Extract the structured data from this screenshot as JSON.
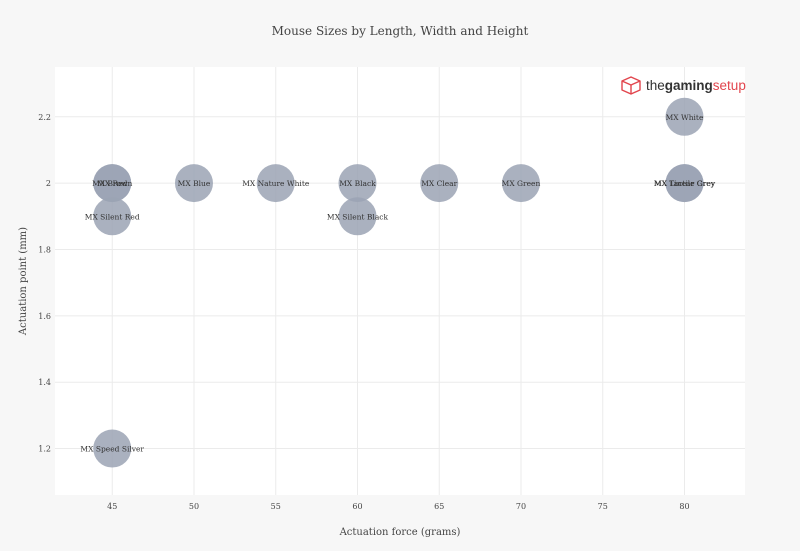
{
  "chart_data": {
    "type": "scatter",
    "title": "Mouse Sizes by Length, Width and Height",
    "xlabel": "Actuation force (grams)",
    "ylabel": "Actuation point (mm)",
    "xlim": [
      41.5,
      83.7
    ],
    "ylim": [
      1.06,
      2.35
    ],
    "x_ticks": [
      45,
      50,
      55,
      60,
      65,
      70,
      75,
      80
    ],
    "y_ticks": [
      1.2,
      1.4,
      1.6,
      1.8,
      2.0,
      2.2
    ],
    "y_tick_labels": [
      "1.2",
      "1.4",
      "1.6",
      "1.8",
      "2",
      "2.2"
    ],
    "grid": true,
    "bubble_color": "#9ba3b4",
    "points": [
      {
        "x": 45,
        "y": 2.0,
        "label": "MX Red"
      },
      {
        "x": 45,
        "y": 2.0,
        "label": "MX Brown"
      },
      {
        "x": 45,
        "y": 1.9,
        "label": "MX Silent Red"
      },
      {
        "x": 45,
        "y": 1.2,
        "label": "MX Speed Silver"
      },
      {
        "x": 50,
        "y": 2.0,
        "label": "MX Blue"
      },
      {
        "x": 55,
        "y": 2.0,
        "label": "MX Nature White"
      },
      {
        "x": 60,
        "y": 2.0,
        "label": "MX Black"
      },
      {
        "x": 60,
        "y": 1.9,
        "label": "MX Silent Black"
      },
      {
        "x": 65,
        "y": 2.0,
        "label": "MX Clear"
      },
      {
        "x": 70,
        "y": 2.0,
        "label": "MX Green"
      },
      {
        "x": 80,
        "y": 2.2,
        "label": "MX White"
      },
      {
        "x": 80,
        "y": 2.0,
        "label": "MX Tactile Grey"
      },
      {
        "x": 80,
        "y": 2.0,
        "label": "MX Linear Grey"
      }
    ]
  },
  "logo": {
    "the": "the",
    "gaming": "gaming",
    "setup": "setup",
    "icon_name": "cube-logo-icon",
    "accent_color": "#e2454d"
  }
}
